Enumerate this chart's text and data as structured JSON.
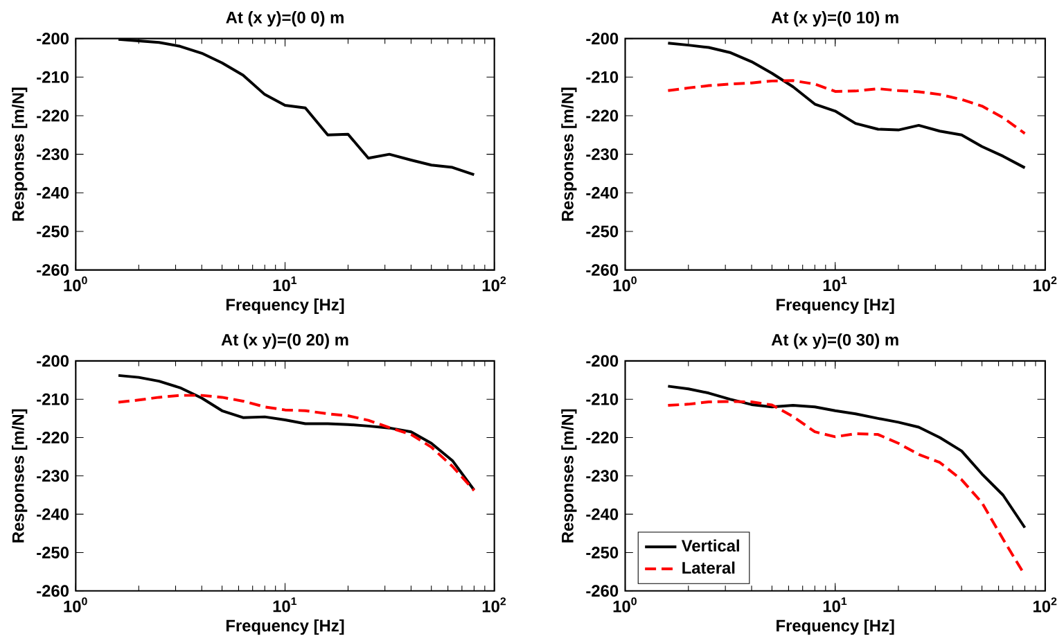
{
  "chart_data": [
    {
      "type": "line",
      "title": "At (x y)=(0 0) m",
      "xlabel": "Frequency [Hz]",
      "ylabel": "Responses [m/N]",
      "log": "x",
      "x": [
        1.6,
        2,
        2.5,
        3.15,
        4,
        5,
        6.3,
        8,
        10,
        12.5,
        16,
        20,
        25,
        31.5,
        40,
        50,
        63,
        80
      ],
      "xlim": [
        1,
        100
      ],
      "xticks": [
        {
          "value": 1,
          "label": "10$^{0}$"
        },
        {
          "value": 10,
          "label": "10$^{1}$"
        },
        {
          "value": 100,
          "label": "10$^{2}$"
        }
      ],
      "ylim": [
        -260,
        -200
      ],
      "yticks": [
        -260,
        -250,
        -240,
        -230,
        -220,
        -210,
        -200
      ],
      "series": [
        {
          "color": "#000000",
          "line_style": "solid",
          "values": [
            -200.2,
            -200.6,
            -201,
            -202,
            -203.8,
            -206.3,
            -209.5,
            -214.5,
            -217.3,
            -218,
            -225,
            -224.8,
            -231,
            -230,
            -231.5,
            -232.8,
            -233.4,
            -235.3
          ]
        }
      ]
    },
    {
      "type": "line",
      "title": "At (x y)=(0 10) m",
      "xlabel": "Frequency [Hz]",
      "ylabel": "Responses [m/N]",
      "log": "x",
      "x": [
        1.6,
        2,
        2.5,
        3.15,
        4,
        5,
        6.3,
        8,
        10,
        12.5,
        16,
        20,
        25,
        31.5,
        40,
        50,
        63,
        80
      ],
      "xlim": [
        1,
        100
      ],
      "xticks": [
        {
          "value": 1,
          "label": "10$^{0}$"
        },
        {
          "value": 10,
          "label": "10$^{1}$"
        },
        {
          "value": 100,
          "label": "10$^{2}$"
        }
      ],
      "ylim": [
        -260,
        -200
      ],
      "yticks": [
        -260,
        -250,
        -240,
        -230,
        -220,
        -210,
        -200
      ],
      "series": [
        {
          "color": "#000000",
          "line_style": "solid",
          "values": [
            -201.2,
            -201.7,
            -202.3,
            -203.6,
            -206,
            -209,
            -212.5,
            -217,
            -218.8,
            -222,
            -223.5,
            -223.7,
            -222.5,
            -224,
            -225,
            -228,
            -230.5,
            -233.5
          ]
        },
        {
          "color": "#ff0000",
          "line_style": "dashed",
          "values": [
            -213.5,
            -212.8,
            -212.2,
            -211.8,
            -211.5,
            -211,
            -210.9,
            -211.8,
            -213.7,
            -213.6,
            -213,
            -213.5,
            -213.8,
            -214.5,
            -215.8,
            -217.5,
            -220.5,
            -224.6
          ]
        }
      ]
    },
    {
      "type": "line",
      "title": "At (x y)=(0 20) m",
      "xlabel": "Frequency [Hz]",
      "ylabel": "Responses [m/N]",
      "log": "x",
      "x": [
        1.6,
        2,
        2.5,
        3.15,
        4,
        5,
        6.3,
        8,
        10,
        12.5,
        16,
        20,
        25,
        31.5,
        40,
        50,
        63,
        80
      ],
      "xlim": [
        1,
        100
      ],
      "xticks": [
        {
          "value": 1,
          "label": "10$^{0}$"
        },
        {
          "value": 10,
          "label": "10$^{1}$"
        },
        {
          "value": 100,
          "label": "10$^{2}$"
        }
      ],
      "ylim": [
        -260,
        -200
      ],
      "yticks": [
        -260,
        -250,
        -240,
        -230,
        -220,
        -210,
        -200
      ],
      "series": [
        {
          "color": "#000000",
          "line_style": "solid",
          "values": [
            -203.8,
            -204.3,
            -205.3,
            -207,
            -209.7,
            -213,
            -214.8,
            -214.6,
            -215.4,
            -216.4,
            -216.4,
            -216.6,
            -217,
            -217.5,
            -218.5,
            -221.5,
            -226,
            -233.7
          ]
        },
        {
          "color": "#ff0000",
          "line_style": "dashed",
          "values": [
            -210.8,
            -210.2,
            -209.5,
            -209,
            -209,
            -209.5,
            -210.5,
            -212,
            -212.8,
            -213,
            -213.8,
            -214.3,
            -215.5,
            -217.4,
            -219.2,
            -222.5,
            -227.5,
            -233.8
          ]
        }
      ]
    },
    {
      "type": "line",
      "title": "At (x y)=(0 30) m",
      "xlabel": "Frequency [Hz]",
      "ylabel": "Responses [m/N]",
      "log": "x",
      "legend": "bottom left",
      "x": [
        1.6,
        2,
        2.5,
        3.15,
        4,
        5,
        6.3,
        8,
        10,
        12.5,
        16,
        20,
        25,
        31.5,
        40,
        50,
        63,
        80
      ],
      "xlim": [
        1,
        100
      ],
      "xticks": [
        {
          "value": 1,
          "label": "10$^{0}$"
        },
        {
          "value": 10,
          "label": "10$^{1}$"
        },
        {
          "value": 100,
          "label": "10$^{2}$"
        }
      ],
      "ylim": [
        -260,
        -200
      ],
      "yticks": [
        -260,
        -250,
        -240,
        -230,
        -220,
        -210,
        -200
      ],
      "series": [
        {
          "name": "Vertical",
          "color": "#000000",
          "line_style": "solid",
          "values": [
            -206.6,
            -207.3,
            -208.4,
            -210,
            -211.4,
            -212,
            -211.6,
            -212,
            -213,
            -213.8,
            -215,
            -216,
            -217.3,
            -220,
            -223.5,
            -229.5,
            -235,
            -243.5
          ]
        },
        {
          "name": "Lateral",
          "color": "#ff0000",
          "line_style": "dashed",
          "values": [
            -211.6,
            -211.3,
            -210.7,
            -210.6,
            -210.7,
            -211.5,
            -214.5,
            -218.5,
            -219.8,
            -219,
            -219.2,
            -221.5,
            -224.4,
            -226.5,
            -231,
            -237,
            -246.5,
            -255.9
          ]
        }
      ]
    }
  ]
}
